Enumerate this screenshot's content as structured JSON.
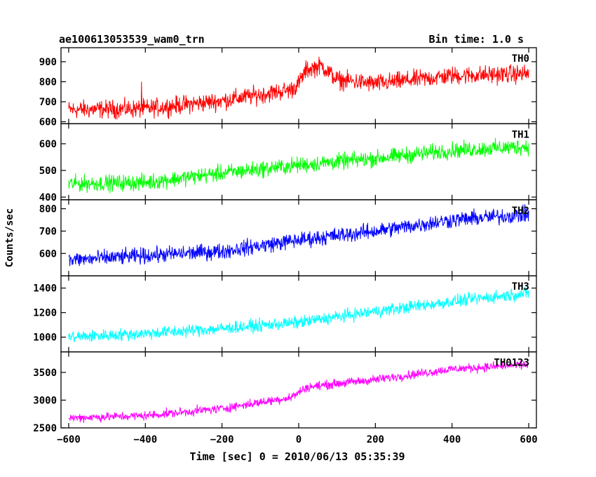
{
  "header": {
    "title": "ae100613053539_wam0_trn",
    "bin_time": "Bin time: 1.0 s"
  },
  "chart_data": {
    "type": "line",
    "xlabel": "Time [sec] 0 = 2010/06/13 05:35:39",
    "ylabel": "Counts/sec",
    "xlim": [
      -620,
      620
    ],
    "x_ticks": [
      -600,
      -400,
      -200,
      0,
      200,
      400,
      600
    ],
    "x_range": [
      -600,
      600
    ],
    "bin_time_s": 1.0,
    "panels": [
      {
        "name": "TH0",
        "color": "#ff0000",
        "ylim": [
          590,
          970
        ],
        "y_ticks": [
          600,
          700,
          800,
          900
        ],
        "trend": [
          [
            -600,
            660
          ],
          [
            -400,
            665
          ],
          [
            -200,
            705
          ],
          [
            -20,
            760
          ],
          [
            0,
            790
          ],
          [
            20,
            860
          ],
          [
            60,
            880
          ],
          [
            100,
            810
          ],
          [
            200,
            790
          ],
          [
            400,
            830
          ],
          [
            600,
            840
          ]
        ],
        "noise_amplitude": 45,
        "features": [
          {
            "x": -410,
            "y": 800
          }
        ]
      },
      {
        "name": "TH1",
        "color": "#00ff00",
        "ylim": [
          390,
          675
        ],
        "y_ticks": [
          400,
          500,
          600
        ],
        "trend": [
          [
            -600,
            450
          ],
          [
            -400,
            455
          ],
          [
            -200,
            490
          ],
          [
            0,
            520
          ],
          [
            200,
            545
          ],
          [
            400,
            575
          ],
          [
            600,
            590
          ]
        ],
        "noise_amplitude": 30
      },
      {
        "name": "TH2",
        "color": "#0000ff",
        "ylim": [
          500,
          840
        ],
        "y_ticks": [
          600,
          700,
          800
        ],
        "trend": [
          [
            -600,
            570
          ],
          [
            -400,
            590
          ],
          [
            -200,
            610
          ],
          [
            0,
            660
          ],
          [
            200,
            700
          ],
          [
            400,
            750
          ],
          [
            600,
            775
          ]
        ],
        "noise_amplitude": 35
      },
      {
        "name": "TH3",
        "color": "#00ffff",
        "ylim": [
          880,
          1500
        ],
        "y_ticks": [
          1000,
          1200,
          1400
        ],
        "trend": [
          [
            -600,
            1000
          ],
          [
            -400,
            1030
          ],
          [
            -200,
            1070
          ],
          [
            0,
            1120
          ],
          [
            200,
            1210
          ],
          [
            400,
            1290
          ],
          [
            600,
            1360
          ]
        ],
        "noise_amplitude": 50
      },
      {
        "name": "TH0123",
        "color": "#ff00ff",
        "ylim": [
          2500,
          3870
        ],
        "y_ticks": [
          2500,
          3000,
          3500
        ],
        "trend": [
          [
            -600,
            2680
          ],
          [
            -400,
            2720
          ],
          [
            -200,
            2850
          ],
          [
            -20,
            3050
          ],
          [
            20,
            3230
          ],
          [
            100,
            3300
          ],
          [
            200,
            3370
          ],
          [
            400,
            3560
          ],
          [
            600,
            3640
          ]
        ],
        "noise_amplitude": 80
      }
    ]
  }
}
